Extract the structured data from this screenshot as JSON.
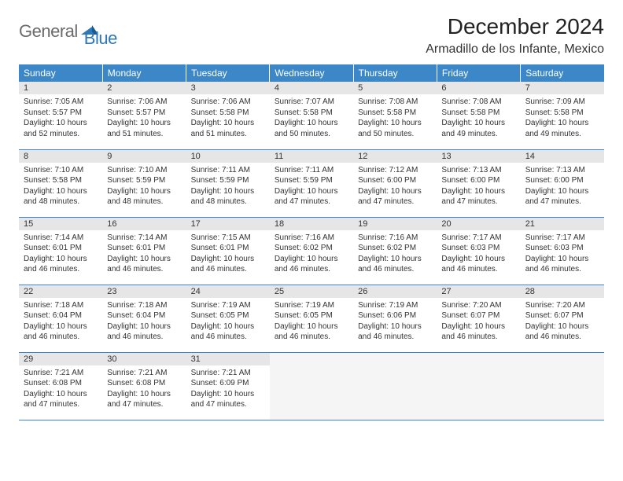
{
  "logo": {
    "word1": "General",
    "word2": "Blue"
  },
  "title": "December 2024",
  "location": "Armadillo de los Infante, Mexico",
  "colors": {
    "header_bg": "#3b87c8",
    "header_fg": "#ffffff",
    "daynum_bg": "#e6e6e6",
    "border": "#3b87c8",
    "logo_gray": "#6b6b6b",
    "logo_blue": "#2f78b7"
  },
  "typography": {
    "title_fontsize": 28,
    "location_fontsize": 16,
    "dayheader_fontsize": 12,
    "cell_fontsize": 10
  },
  "weekdays": [
    "Sunday",
    "Monday",
    "Tuesday",
    "Wednesday",
    "Thursday",
    "Friday",
    "Saturday"
  ],
  "days": [
    {
      "n": 1,
      "sr": "7:05 AM",
      "ss": "5:57 PM",
      "dl": "10 hours and 52 minutes."
    },
    {
      "n": 2,
      "sr": "7:06 AM",
      "ss": "5:57 PM",
      "dl": "10 hours and 51 minutes."
    },
    {
      "n": 3,
      "sr": "7:06 AM",
      "ss": "5:58 PM",
      "dl": "10 hours and 51 minutes."
    },
    {
      "n": 4,
      "sr": "7:07 AM",
      "ss": "5:58 PM",
      "dl": "10 hours and 50 minutes."
    },
    {
      "n": 5,
      "sr": "7:08 AM",
      "ss": "5:58 PM",
      "dl": "10 hours and 50 minutes."
    },
    {
      "n": 6,
      "sr": "7:08 AM",
      "ss": "5:58 PM",
      "dl": "10 hours and 49 minutes."
    },
    {
      "n": 7,
      "sr": "7:09 AM",
      "ss": "5:58 PM",
      "dl": "10 hours and 49 minutes."
    },
    {
      "n": 8,
      "sr": "7:10 AM",
      "ss": "5:58 PM",
      "dl": "10 hours and 48 minutes."
    },
    {
      "n": 9,
      "sr": "7:10 AM",
      "ss": "5:59 PM",
      "dl": "10 hours and 48 minutes."
    },
    {
      "n": 10,
      "sr": "7:11 AM",
      "ss": "5:59 PM",
      "dl": "10 hours and 48 minutes."
    },
    {
      "n": 11,
      "sr": "7:11 AM",
      "ss": "5:59 PM",
      "dl": "10 hours and 47 minutes."
    },
    {
      "n": 12,
      "sr": "7:12 AM",
      "ss": "6:00 PM",
      "dl": "10 hours and 47 minutes."
    },
    {
      "n": 13,
      "sr": "7:13 AM",
      "ss": "6:00 PM",
      "dl": "10 hours and 47 minutes."
    },
    {
      "n": 14,
      "sr": "7:13 AM",
      "ss": "6:00 PM",
      "dl": "10 hours and 47 minutes."
    },
    {
      "n": 15,
      "sr": "7:14 AM",
      "ss": "6:01 PM",
      "dl": "10 hours and 46 minutes."
    },
    {
      "n": 16,
      "sr": "7:14 AM",
      "ss": "6:01 PM",
      "dl": "10 hours and 46 minutes."
    },
    {
      "n": 17,
      "sr": "7:15 AM",
      "ss": "6:01 PM",
      "dl": "10 hours and 46 minutes."
    },
    {
      "n": 18,
      "sr": "7:16 AM",
      "ss": "6:02 PM",
      "dl": "10 hours and 46 minutes."
    },
    {
      "n": 19,
      "sr": "7:16 AM",
      "ss": "6:02 PM",
      "dl": "10 hours and 46 minutes."
    },
    {
      "n": 20,
      "sr": "7:17 AM",
      "ss": "6:03 PM",
      "dl": "10 hours and 46 minutes."
    },
    {
      "n": 21,
      "sr": "7:17 AM",
      "ss": "6:03 PM",
      "dl": "10 hours and 46 minutes."
    },
    {
      "n": 22,
      "sr": "7:18 AM",
      "ss": "6:04 PM",
      "dl": "10 hours and 46 minutes."
    },
    {
      "n": 23,
      "sr": "7:18 AM",
      "ss": "6:04 PM",
      "dl": "10 hours and 46 minutes."
    },
    {
      "n": 24,
      "sr": "7:19 AM",
      "ss": "6:05 PM",
      "dl": "10 hours and 46 minutes."
    },
    {
      "n": 25,
      "sr": "7:19 AM",
      "ss": "6:05 PM",
      "dl": "10 hours and 46 minutes."
    },
    {
      "n": 26,
      "sr": "7:19 AM",
      "ss": "6:06 PM",
      "dl": "10 hours and 46 minutes."
    },
    {
      "n": 27,
      "sr": "7:20 AM",
      "ss": "6:07 PM",
      "dl": "10 hours and 46 minutes."
    },
    {
      "n": 28,
      "sr": "7:20 AM",
      "ss": "6:07 PM",
      "dl": "10 hours and 46 minutes."
    },
    {
      "n": 29,
      "sr": "7:21 AM",
      "ss": "6:08 PM",
      "dl": "10 hours and 47 minutes."
    },
    {
      "n": 30,
      "sr": "7:21 AM",
      "ss": "6:08 PM",
      "dl": "10 hours and 47 minutes."
    },
    {
      "n": 31,
      "sr": "7:21 AM",
      "ss": "6:09 PM",
      "dl": "10 hours and 47 minutes."
    }
  ],
  "labels": {
    "sunrise": "Sunrise:",
    "sunset": "Sunset:",
    "daylight": "Daylight:"
  }
}
